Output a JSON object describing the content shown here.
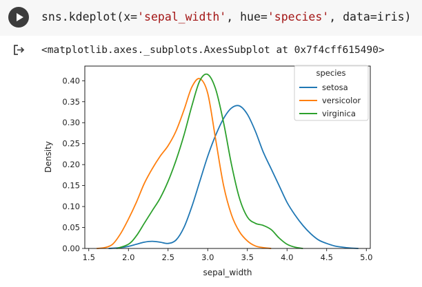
{
  "cell": {
    "code_parts": {
      "fn": "sns.kdeplot(x=",
      "x_arg": "'sepal_width'",
      "sep1": ", hue=",
      "hue_arg": "'species'",
      "end": ", data=iris)"
    },
    "output_text": "<matplotlib.axes._subplots.AxesSubplot at 0x7f4cff615490>"
  },
  "icons": {
    "run": "play-icon",
    "output": "output-arrow-icon"
  },
  "chart_data": {
    "type": "line",
    "xlabel": "sepal_width",
    "ylabel": "Density",
    "xlim": [
      1.45,
      5.05
    ],
    "ylim": [
      0,
      0.435
    ],
    "xticks": [
      1.5,
      2.0,
      2.5,
      3.0,
      3.5,
      4.0,
      4.5,
      5.0
    ],
    "yticks": [
      0.0,
      0.05,
      0.1,
      0.15,
      0.2,
      0.25,
      0.3,
      0.35,
      0.4
    ],
    "xtick_labels": [
      "1.5",
      "2.0",
      "2.5",
      "3.0",
      "3.5",
      "4.0",
      "4.5",
      "5.0"
    ],
    "ytick_labels": [
      "0.00",
      "0.05",
      "0.10",
      "0.15",
      "0.20",
      "0.25",
      "0.30",
      "0.35",
      "0.40"
    ],
    "grid": false,
    "legend": {
      "title": "species",
      "placement": "top-right"
    },
    "series": [
      {
        "name": "setosa",
        "color": "#1f77b4",
        "x": [
          1.75,
          1.9,
          2.0,
          2.1,
          2.2,
          2.3,
          2.4,
          2.5,
          2.6,
          2.7,
          2.8,
          2.9,
          3.0,
          3.1,
          3.2,
          3.3,
          3.4,
          3.5,
          3.6,
          3.7,
          3.8,
          3.9,
          4.0,
          4.1,
          4.2,
          4.3,
          4.4,
          4.5,
          4.6,
          4.7,
          4.8,
          4.9
        ],
        "y": [
          0.0,
          0.002,
          0.005,
          0.01,
          0.015,
          0.017,
          0.015,
          0.012,
          0.02,
          0.05,
          0.1,
          0.16,
          0.22,
          0.27,
          0.31,
          0.335,
          0.34,
          0.32,
          0.28,
          0.23,
          0.19,
          0.15,
          0.11,
          0.08,
          0.055,
          0.035,
          0.02,
          0.012,
          0.006,
          0.003,
          0.001,
          0.0
        ]
      },
      {
        "name": "versicolor",
        "color": "#ff7f0e",
        "x": [
          1.6,
          1.7,
          1.8,
          1.9,
          2.0,
          2.1,
          2.2,
          2.3,
          2.4,
          2.5,
          2.6,
          2.7,
          2.8,
          2.9,
          3.0,
          3.1,
          3.2,
          3.3,
          3.4,
          3.5,
          3.6,
          3.7,
          3.8
        ],
        "y": [
          0.0,
          0.002,
          0.01,
          0.035,
          0.07,
          0.11,
          0.155,
          0.19,
          0.22,
          0.245,
          0.28,
          0.33,
          0.385,
          0.405,
          0.37,
          0.26,
          0.15,
          0.08,
          0.04,
          0.018,
          0.006,
          0.002,
          0.0
        ]
      },
      {
        "name": "virginica",
        "color": "#2ca02c",
        "x": [
          1.85,
          2.0,
          2.1,
          2.2,
          2.3,
          2.4,
          2.5,
          2.6,
          2.7,
          2.8,
          2.9,
          3.0,
          3.1,
          3.2,
          3.3,
          3.4,
          3.5,
          3.6,
          3.7,
          3.8,
          3.9,
          4.0,
          4.1,
          4.2
        ],
        "y": [
          0.0,
          0.01,
          0.03,
          0.06,
          0.09,
          0.12,
          0.16,
          0.21,
          0.27,
          0.34,
          0.4,
          0.415,
          0.38,
          0.3,
          0.2,
          0.12,
          0.075,
          0.06,
          0.055,
          0.045,
          0.025,
          0.01,
          0.003,
          0.0
        ]
      }
    ]
  }
}
